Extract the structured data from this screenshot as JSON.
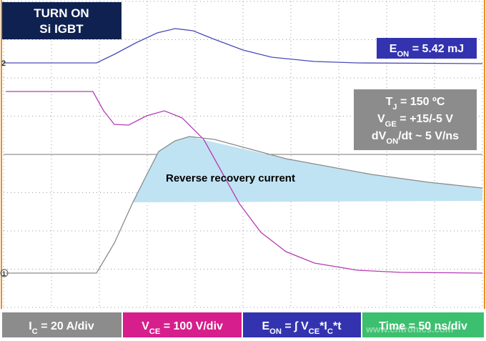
{
  "header": {
    "title_lines": [
      "TURN ON",
      "Si IGBT"
    ]
  },
  "energy_label": [
    "E",
    "ON",
    " = 5.42 mJ"
  ],
  "conditions": [
    [
      "T",
      "J",
      " = 150 ºC"
    ],
    [
      "V",
      "GE",
      " = +15/-5 V"
    ],
    [
      "dV",
      "ON",
      "/dt ~ 5 V/ns"
    ]
  ],
  "annotation": "Reverse recovery current",
  "channel_markers": [
    "2",
    "1"
  ],
  "scale_bar": [
    [
      "I",
      "C",
      " = 20 A/div"
    ],
    [
      "V",
      "CE",
      " = 100 V/div"
    ],
    [
      "E",
      "ON",
      " = ∫ V",
      "CE",
      "*I",
      "C",
      "*t"
    ],
    [
      "Time = 50 ns/div"
    ]
  ],
  "watermark": "www.cntronics.com"
}
